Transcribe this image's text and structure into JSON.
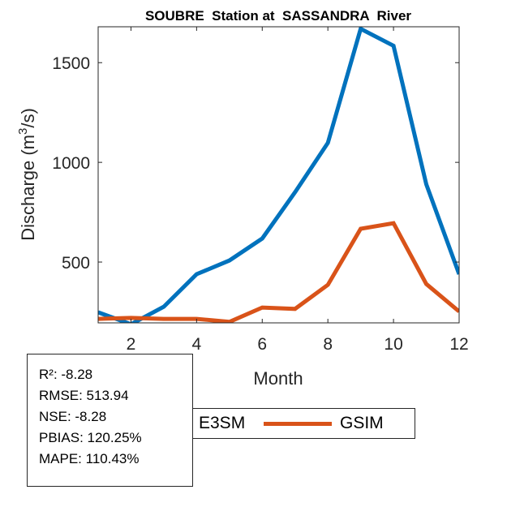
{
  "chart_data": {
    "type": "line",
    "title": "SOUBRE  Station at  SASSANDRA  River",
    "xlabel": "Month",
    "ylabel": "Discharge (m³/s)",
    "ylabel_parts": {
      "main": "Discharge (m",
      "sup": "3",
      "tail": "/s)"
    },
    "xlim": [
      1,
      12
    ],
    "ylim": [
      195,
      1680
    ],
    "xticks": [
      2,
      4,
      6,
      8,
      10,
      12
    ],
    "yticks": [
      500,
      1000,
      1500
    ],
    "grid": false,
    "x": [
      1,
      2,
      3,
      4,
      5,
      6,
      7,
      8,
      9,
      10,
      11,
      12
    ],
    "series": [
      {
        "name": "E3SM",
        "color": "#0072BD",
        "values": [
          248,
          188,
          276,
          439,
          508,
          618,
          850,
          1098,
          1670,
          1585,
          890,
          439
        ]
      },
      {
        "name": "GSIM",
        "color": "#D95319",
        "values": [
          215,
          220,
          215,
          215,
          200,
          272,
          265,
          386,
          667,
          695,
          390,
          252
        ]
      }
    ],
    "legend_placement": "bottom-center",
    "annotations": {
      "metrics": [
        {
          "label": "R²",
          "value": "-8.28"
        },
        {
          "label": "RMSE",
          "value": "513.94"
        },
        {
          "label": "NSE",
          "value": "-8.28"
        },
        {
          "label": "PBIAS",
          "value": "120.25%"
        },
        {
          "label": "MAPE",
          "value": "110.43%"
        }
      ]
    }
  },
  "legend": {
    "items": [
      {
        "label": "E3SM",
        "color": "#0072BD"
      },
      {
        "label": "GSIM",
        "color": "#D95319"
      }
    ]
  },
  "metrics_text": [
    "R²: -8.28",
    "RMSE: 513.94",
    "NSE: -8.28",
    "PBIAS: 120.25%",
    "MAPE: 110.43%"
  ]
}
